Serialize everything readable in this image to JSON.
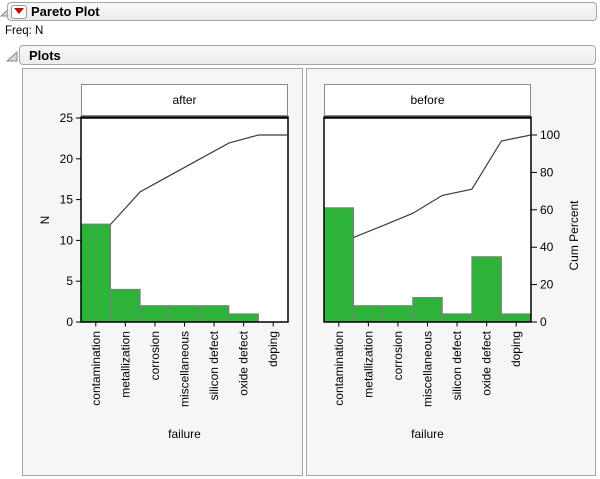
{
  "outline": {
    "title": "Pareto Plot",
    "freq": "Freq: N",
    "plots": "Plots"
  },
  "icons": {
    "red_triangle_menu": "red-triangle-menu",
    "disclosure_open": "disclosure-triangle-open"
  },
  "colors": {
    "bar_fill": "#2db339",
    "bar_stroke": "#7f7f7f",
    "cum_line": "#3c3c3c",
    "frame": "#000000",
    "title_box_border": "#8a8a8a",
    "panel_bg": "#f6f6f6",
    "panel_border": "#a6a6a6",
    "red_triangle": "#cc0000"
  },
  "chart_data": [
    {
      "type": "bar",
      "subtype": "pareto (bars + cumulative percent line)",
      "panel_title": "after",
      "categories": [
        "contamination",
        "metallization",
        "corrosion",
        "miscellaneous",
        "silicon defect",
        "oxide defect",
        "doping"
      ],
      "values": [
        12,
        4,
        2,
        2,
        2,
        1,
        0
      ],
      "total_n": 23,
      "cum_percent": [
        52.2,
        69.6,
        78.3,
        87.0,
        95.7,
        100,
        100
      ],
      "xlabel": "failure",
      "ylabel": "N",
      "n_axis": {
        "min": 0,
        "max": 25,
        "ticks": [
          0,
          5,
          10,
          15,
          20,
          25
        ],
        "side": "left"
      },
      "pct_axis": null,
      "grid": false,
      "legend": "none"
    },
    {
      "type": "bar",
      "subtype": "pareto (bars + cumulative percent line)",
      "panel_title": "before",
      "categories": [
        "contamination",
        "metallization",
        "corrosion",
        "miscellaneous",
        "silicon defect",
        "oxide defect",
        "doping"
      ],
      "values": [
        14,
        2,
        2,
        3,
        1,
        8,
        1
      ],
      "total_n": 31,
      "cum_percent": [
        45.2,
        51.6,
        58.1,
        67.7,
        71.0,
        96.8,
        100
      ],
      "xlabel": "failure",
      "ylabel": "Cum Percent",
      "n_axis": null,
      "pct_axis": {
        "min": 0,
        "max": 100,
        "ticks": [
          0,
          20,
          40,
          60,
          80,
          100
        ],
        "side": "right"
      },
      "grid": false,
      "legend": "none"
    }
  ]
}
